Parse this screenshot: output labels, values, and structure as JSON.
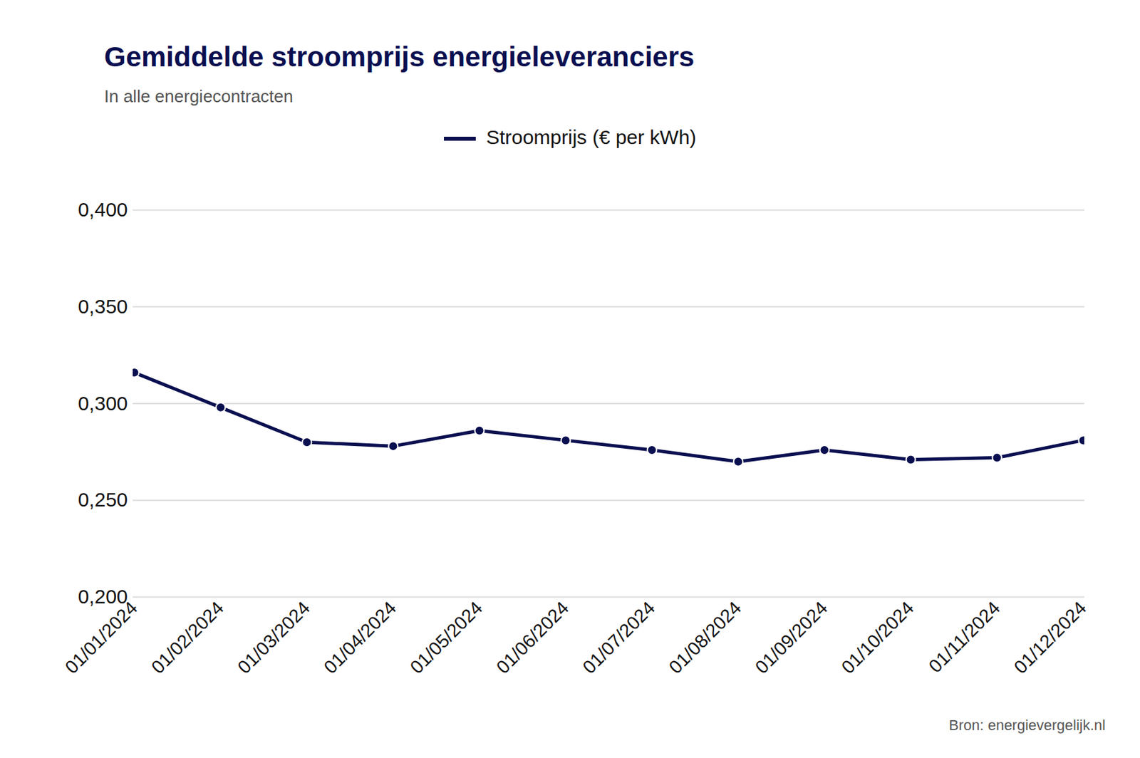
{
  "chart_data": {
    "type": "line",
    "title": "Gemiddelde stroomprijs energieleveranciers",
    "subtitle": "In alle energiecontracten",
    "caption": "Bron: energievergelijk.nl",
    "categories": [
      "01/01/2024",
      "01/02/2024",
      "01/03/2024",
      "01/04/2024",
      "01/05/2024",
      "01/06/2024",
      "01/07/2024",
      "01/08/2024",
      "01/09/2024",
      "01/10/2024",
      "01/11/2024",
      "01/12/2024"
    ],
    "series": [
      {
        "name": "Stroomprijs (€ per kWh)",
        "color": "#0a0f50",
        "marker": "circle",
        "values": [
          0.316,
          0.298,
          0.28,
          0.278,
          0.286,
          0.281,
          0.276,
          0.27,
          0.276,
          0.271,
          0.272,
          0.281
        ]
      }
    ],
    "ylim": [
      0.2,
      0.4
    ],
    "yticks": [
      {
        "value": 0.2,
        "label": "0,200"
      },
      {
        "value": 0.25,
        "label": "0,250"
      },
      {
        "value": 0.3,
        "label": "0,300"
      },
      {
        "value": 0.35,
        "label": "0,350"
      },
      {
        "value": 0.4,
        "label": "0,400"
      }
    ],
    "grid": true,
    "legend": "top"
  }
}
